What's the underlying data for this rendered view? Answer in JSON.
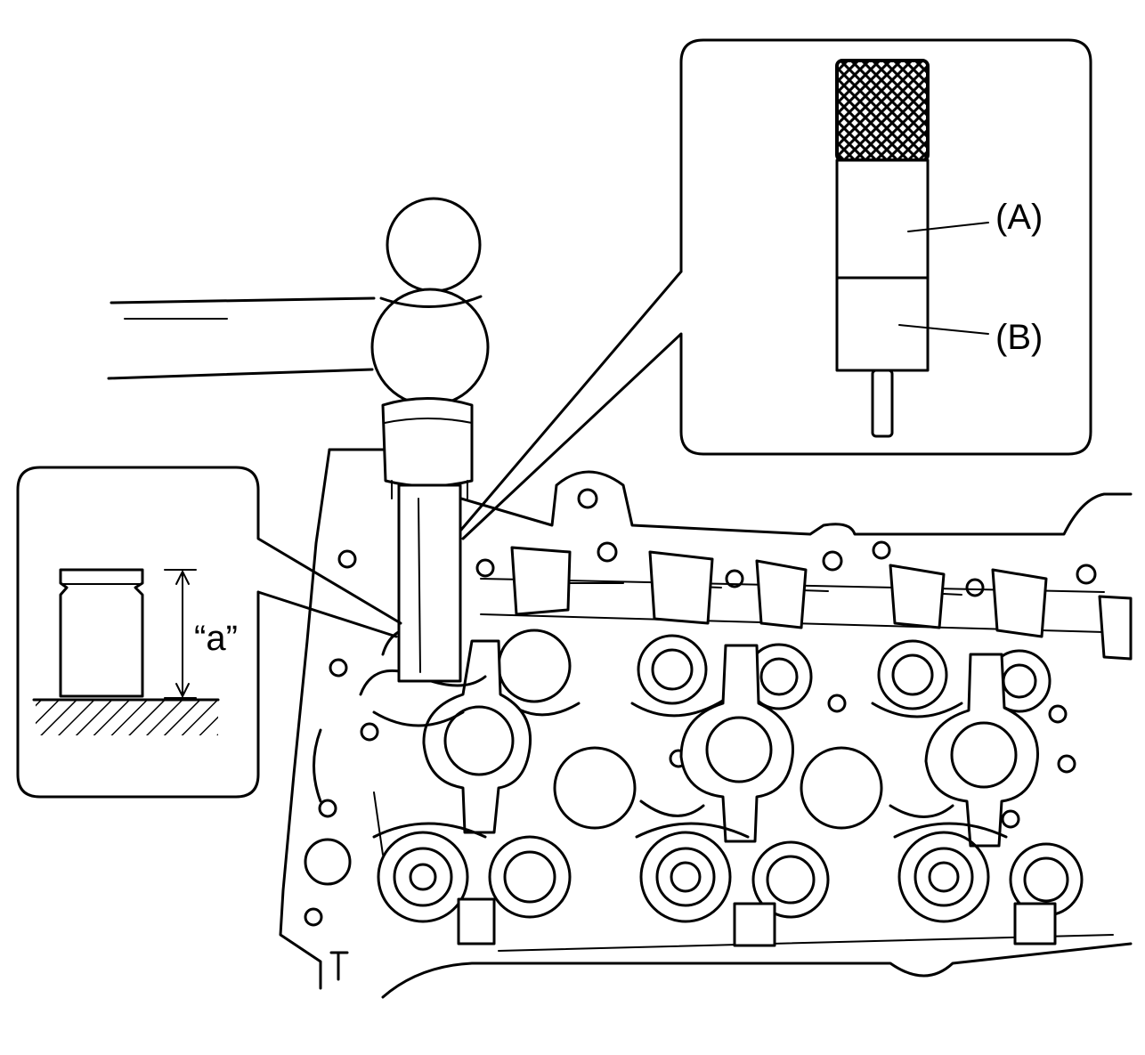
{
  "callouts": {
    "part_a": "(A)",
    "part_b": "(B)",
    "dimension": "“a”"
  },
  "colors": {
    "ink": "#000000",
    "paper": "#ffffff"
  }
}
